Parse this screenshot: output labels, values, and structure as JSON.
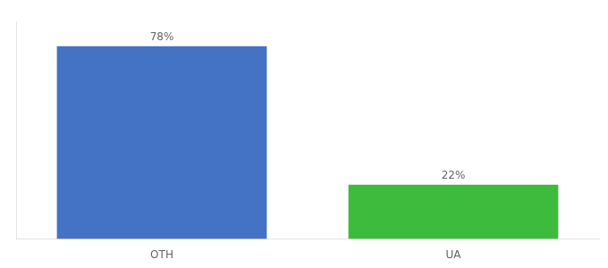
{
  "chart_data": {
    "type": "bar",
    "categories": [
      "OTH",
      "UA"
    ],
    "values": [
      78,
      22
    ],
    "value_labels": [
      "78%",
      "22%"
    ],
    "data_labels": true,
    "colors": [
      "#4472c4",
      "#3dbb3d"
    ],
    "ylim": [
      0,
      88
    ],
    "grid": false,
    "tick_labels": "x"
  }
}
